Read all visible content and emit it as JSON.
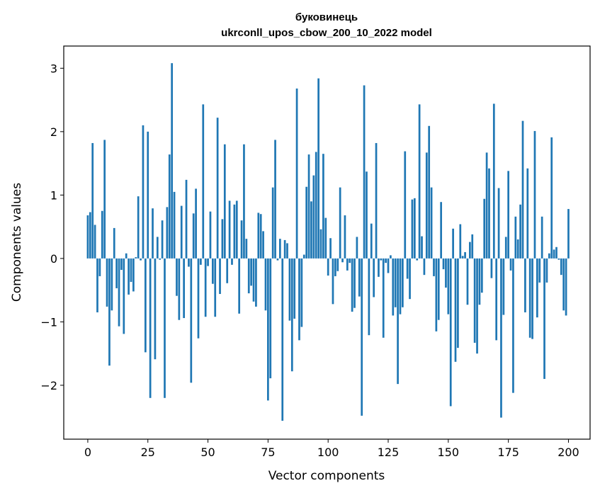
{
  "chart_data": {
    "type": "bar",
    "title_line1": "буковинець",
    "title_line2": "ukrconll_upos_cbow_200_10_2022 model",
    "xlabel": "Vector components",
    "ylabel": "Components values",
    "xlim": [
      -10,
      209
    ],
    "ylim": [
      -2.85,
      3.35
    ],
    "xticks": [
      0,
      25,
      50,
      75,
      100,
      125,
      150,
      175,
      200
    ],
    "xtick_labels": [
      "0",
      "25",
      "50",
      "75",
      "100",
      "125",
      "150",
      "175",
      "200"
    ],
    "yticks": [
      -2,
      -1,
      0,
      1,
      2,
      3
    ],
    "ytick_labels": [
      "−2",
      "−1",
      "0",
      "1",
      "2",
      "3"
    ],
    "bar_color": "#1f77b4",
    "values": [
      0.68,
      0.73,
      1.82,
      0.53,
      -0.85,
      -0.28,
      0.75,
      1.87,
      -0.76,
      -1.69,
      -0.82,
      0.48,
      -0.47,
      -1.07,
      -0.18,
      -1.19,
      0.08,
      -0.57,
      -0.37,
      -0.52,
      0.02,
      0.98,
      -0.03,
      2.1,
      -1.48,
      2.0,
      -2.2,
      0.79,
      -1.59,
      0.34,
      -0.02,
      0.6,
      -2.2,
      0.81,
      1.64,
      3.08,
      1.05,
      -0.59,
      -0.97,
      0.83,
      -0.94,
      1.24,
      -0.13,
      -1.96,
      0.71,
      1.1,
      -1.26,
      -0.1,
      2.43,
      -0.92,
      -0.12,
      0.74,
      -0.4,
      -0.92,
      2.22,
      -0.56,
      0.62,
      1.8,
      -0.39,
      0.91,
      -0.1,
      0.85,
      0.91,
      -0.87,
      0.6,
      1.8,
      0.31,
      -0.55,
      -0.43,
      -0.68,
      -0.76,
      0.72,
      0.7,
      0.43,
      -0.82,
      -2.24,
      -1.89,
      1.12,
      1.87,
      -0.03,
      0.31,
      -2.56,
      0.29,
      0.24,
      -0.98,
      -1.78,
      -0.95,
      2.68,
      -1.29,
      -1.08,
      0.06,
      1.13,
      1.64,
      0.9,
      1.31,
      1.68,
      2.84,
      0.46,
      1.65,
      0.64,
      -0.27,
      0.32,
      -0.72,
      -0.28,
      -0.2,
      1.12,
      -0.06,
      0.68,
      -0.19,
      -0.07,
      -0.84,
      -0.78,
      0.34,
      -0.6,
      -2.48,
      2.73,
      1.37,
      -1.21,
      0.55,
      -0.61,
      1.82,
      -0.29,
      -0.03,
      -1.25,
      -0.07,
      -0.23,
      0.05,
      -0.9,
      -0.77,
      -1.98,
      -0.88,
      -0.77,
      1.69,
      -0.32,
      -0.64,
      0.93,
      0.95,
      -0.03,
      2.43,
      0.35,
      -0.26,
      1.67,
      2.09,
      1.12,
      -0.28,
      -1.15,
      -0.97,
      0.89,
      -0.17,
      -0.46,
      -0.88,
      -2.33,
      0.47,
      -1.63,
      -1.41,
      0.54,
      0.04,
      0.1,
      -0.73,
      0.26,
      0.38,
      -1.33,
      -1.5,
      -0.73,
      -0.54,
      0.94,
      1.67,
      1.42,
      -0.31,
      2.44,
      -1.29,
      1.11,
      -2.51,
      -0.89,
      0.34,
      1.38,
      -0.19,
      -2.12,
      0.66,
      0.3,
      0.85,
      2.17,
      -0.85,
      1.42,
      -1.25,
      -1.27,
      2.01,
      -0.93,
      -0.38,
      0.66,
      -1.9,
      -0.38,
      0.08,
      1.91,
      0.14,
      0.18,
      -0.02,
      -0.26,
      -0.82,
      -0.9,
      0.78
    ]
  }
}
